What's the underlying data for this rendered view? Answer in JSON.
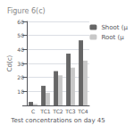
{
  "chart_data": {
    "type": "bar",
    "title": "Figure 6(c)",
    "categories": [
      "C",
      "TC1",
      "TC2",
      "TC3",
      "TC4"
    ],
    "series": [
      {
        "name": "Shoot (µ",
        "color": "#666666",
        "values": [
          2.5,
          14.0,
          24.5,
          37.0,
          46.5
        ]
      },
      {
        "name": "Root (µ",
        "color": "#c8c8c8",
        "values": [
          1.0,
          9.0,
          21.5,
          27.0,
          32.0
        ]
      }
    ],
    "xlabel": "Test concentrations on day 45",
    "ylabel": "Cd(c)",
    "ylim": [
      0,
      60
    ],
    "yticks": [
      10,
      20,
      30,
      40,
      50,
      60
    ],
    "grid": true,
    "legend": "upper right"
  }
}
